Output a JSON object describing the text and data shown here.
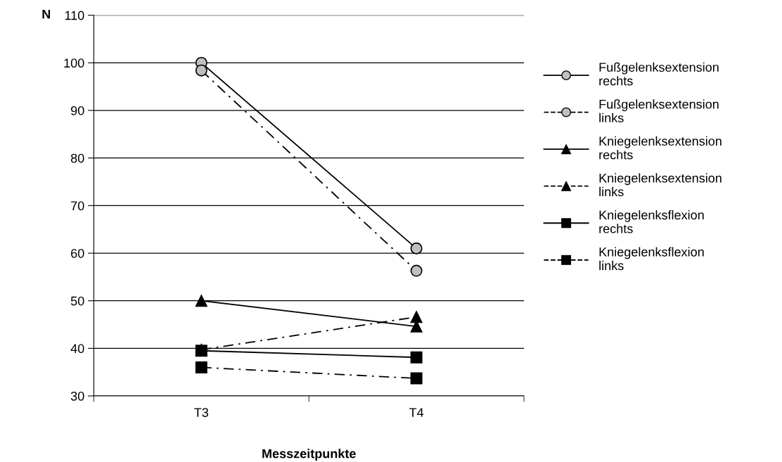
{
  "chart_data": {
    "type": "line",
    "ylabel": "N",
    "xlabel": "Messzeitpunkte",
    "categories": [
      "T3",
      "T4"
    ],
    "series": [
      {
        "name": "Fußgelenksextension rechts",
        "color": "#c0c0c0",
        "marker": "circle",
        "line_style": "solid",
        "values": [
          100,
          61
        ]
      },
      {
        "name": "Fußgelenksextension links",
        "color": "#c0c0c0",
        "marker": "circle",
        "line_style": "dashdot",
        "values": [
          98.4,
          56.3
        ]
      },
      {
        "name": "Kniegelenksextension rechts",
        "color": "#000000",
        "marker": "triangle",
        "line_style": "solid",
        "values": [
          50,
          44.6
        ]
      },
      {
        "name": "Kniegelenksextension links",
        "color": "#000000",
        "marker": "triangle",
        "line_style": "dashdot",
        "values": [
          39.7,
          46.6
        ]
      },
      {
        "name": "Kniegelenksflexion rechts",
        "color": "#000000",
        "marker": "square",
        "line_style": "solid",
        "values": [
          39.5,
          38.1
        ]
      },
      {
        "name": "Kniegelenksflexion links",
        "color": "#000000",
        "marker": "square",
        "line_style": "dashdot",
        "values": [
          36,
          33.7
        ]
      }
    ],
    "ylim": [
      30,
      110
    ],
    "yticks": [
      30,
      40,
      50,
      60,
      70,
      80,
      90,
      100,
      110
    ],
    "grid": "y",
    "legend": "right"
  }
}
